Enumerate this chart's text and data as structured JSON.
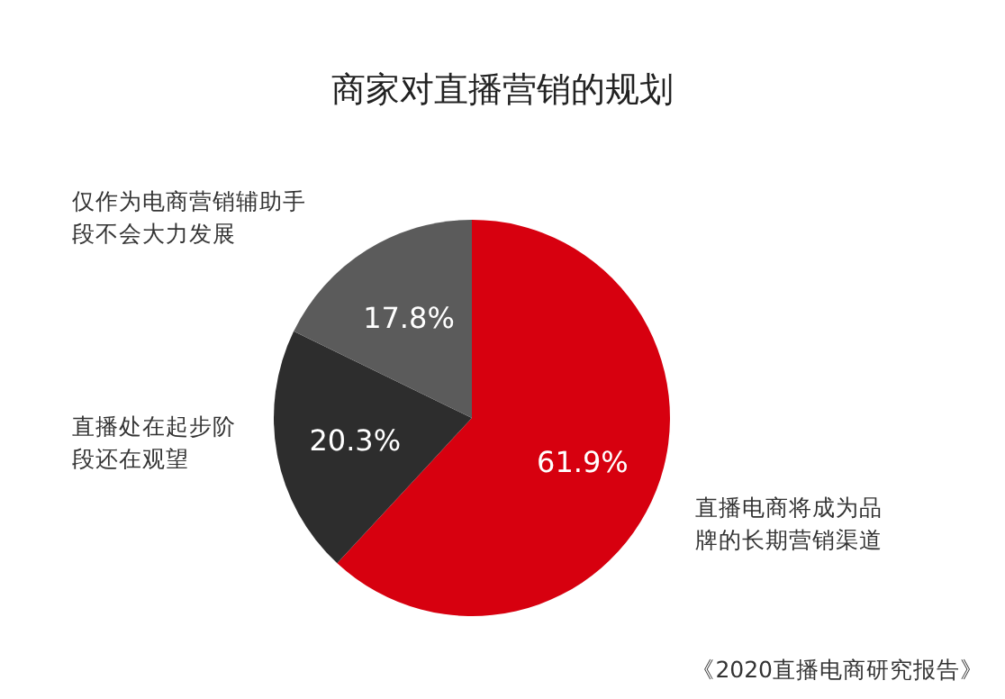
{
  "chart_data": {
    "type": "pie",
    "title": "商家对直播营销的规划",
    "categories": [
      "直播电商将成为品牌的长期营销渠道",
      "直播处在起步阶段还在观望",
      "仅作为电商营销辅助手段不会大力发展"
    ],
    "values": [
      61.9,
      20.3,
      17.8
    ],
    "value_labels": [
      "61.9%",
      "20.3%",
      "17.8%"
    ],
    "colors": [
      "#d7000f",
      "#2d2d2d",
      "#5b5b5b"
    ],
    "annotations": [
      "《2020直播电商研究报告》"
    ]
  }
}
